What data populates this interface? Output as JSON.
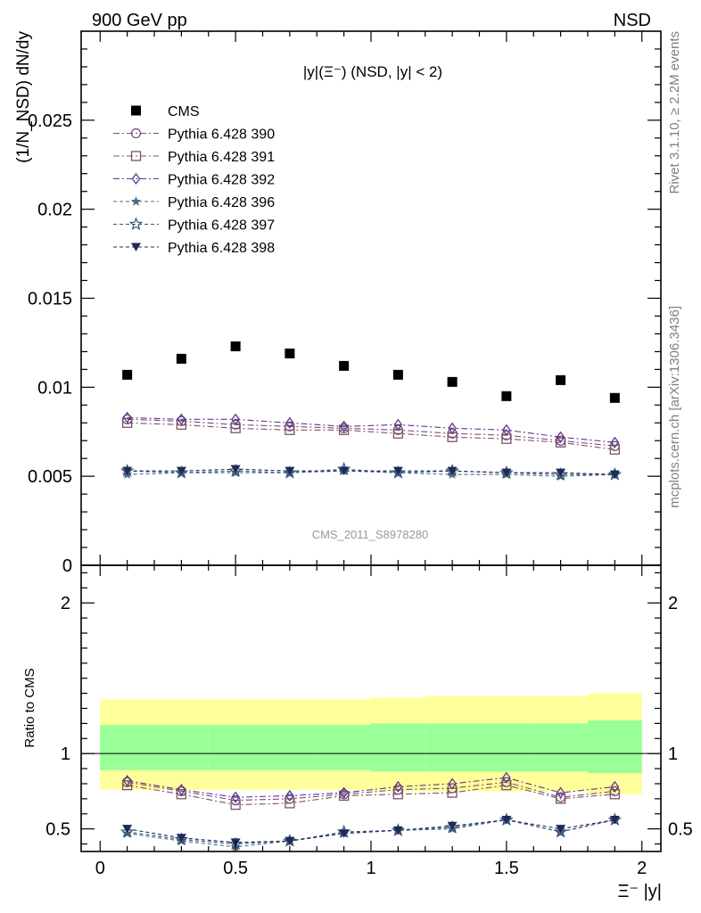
{
  "header": {
    "left": "900 GeV pp",
    "right": "NSD"
  },
  "side_labels": {
    "rivet": "Rivet 3.1.10, ≥ 2.2M events",
    "mcplots": "mcplots.cern.ch [arXiv:1306.3436]"
  },
  "watermark": "CMS_2011_S8978280",
  "chart_data": [
    {
      "type": "scatter",
      "title": "|y|(Ξ⁻) (NSD, |y| < 2)",
      "ylabel": "(1/N_NSD) dN/dy",
      "xlim": [
        -0.07,
        2.07
      ],
      "ylim": [
        0,
        0.03
      ],
      "y_ticks": [
        "0",
        "0.005",
        "0.01",
        "0.015",
        "0.02",
        "0.025"
      ],
      "legend_position": "top-left",
      "x": [
        0.1,
        0.3,
        0.5,
        0.7,
        0.9,
        1.1,
        1.3,
        1.5,
        1.7,
        1.9
      ],
      "series": [
        {
          "name": "CMS",
          "color": "#000000",
          "marker": "filled-square",
          "line": "none",
          "values": [
            0.0107,
            0.0116,
            0.0123,
            0.0119,
            0.0112,
            0.0107,
            0.0103,
            0.0095,
            0.0104,
            0.0094
          ]
        },
        {
          "name": "Pythia 6.428 390",
          "color": "#7a4a7a",
          "marker": "open-circle",
          "line": "dashdot",
          "values": [
            0.0082,
            0.0081,
            0.0079,
            0.0078,
            0.0077,
            0.0076,
            0.0074,
            0.0073,
            0.007,
            0.0067
          ]
        },
        {
          "name": "Pythia 6.428 391",
          "color": "#7a5466",
          "marker": "open-square",
          "line": "dashdot",
          "values": [
            0.008,
            0.0079,
            0.0077,
            0.0076,
            0.0076,
            0.0074,
            0.0072,
            0.0071,
            0.0069,
            0.0065
          ]
        },
        {
          "name": "Pythia 6.428 392",
          "color": "#5a3a8a",
          "marker": "open-diamond",
          "line": "dashdot",
          "values": [
            0.0083,
            0.0082,
            0.0082,
            0.008,
            0.0078,
            0.0079,
            0.0077,
            0.0076,
            0.0072,
            0.0069
          ]
        },
        {
          "name": "Pythia 6.428 396",
          "color": "#4a6e82",
          "marker": "filled-star",
          "line": "dashed",
          "values": [
            0.0051,
            0.0052,
            0.0052,
            0.0052,
            0.0053,
            0.0052,
            0.0051,
            0.0051,
            0.005,
            0.0051
          ]
        },
        {
          "name": "Pythia 6.428 397",
          "color": "#3a5478",
          "marker": "open-star",
          "line": "dashed",
          "values": [
            0.0053,
            0.0052,
            0.0053,
            0.0052,
            0.0054,
            0.0052,
            0.0053,
            0.0052,
            0.0051,
            0.0051
          ]
        },
        {
          "name": "Pythia 6.428 398",
          "color": "#1e2a5a",
          "marker": "filled-triangle-down",
          "line": "dashed",
          "values": [
            0.0053,
            0.0053,
            0.0054,
            0.0053,
            0.0053,
            0.0053,
            0.0053,
            0.0052,
            0.0052,
            0.0051
          ]
        }
      ]
    },
    {
      "type": "scatter",
      "ylabel": "Ratio to CMS",
      "xlabel": "Ξ⁻ |y|",
      "xlim": [
        -0.07,
        2.07
      ],
      "ylim": [
        0.35,
        2.25
      ],
      "x_ticks": [
        "0",
        "0.5",
        "1",
        "1.5",
        "2"
      ],
      "y_ticks": [
        "0.5",
        "1",
        "2"
      ],
      "reference_line": 1,
      "bands": {
        "x_edges": [
          0,
          0.2,
          0.4,
          0.6,
          0.8,
          1.0,
          1.2,
          1.4,
          1.6,
          1.8,
          2.0
        ],
        "stat_color": "#99ff99",
        "total_color": "#ffff99",
        "stat_low": [
          0.89,
          0.89,
          0.89,
          0.89,
          0.89,
          0.88,
          0.88,
          0.88,
          0.88,
          0.87
        ],
        "stat_high": [
          1.19,
          1.19,
          1.19,
          1.19,
          1.19,
          1.2,
          1.2,
          1.2,
          1.2,
          1.22
        ],
        "total_low": [
          0.76,
          0.76,
          0.76,
          0.76,
          0.76,
          0.75,
          0.75,
          0.75,
          0.75,
          0.73
        ],
        "total_high": [
          1.36,
          1.36,
          1.36,
          1.36,
          1.36,
          1.37,
          1.38,
          1.38,
          1.38,
          1.4
        ]
      },
      "x": [
        0.1,
        0.3,
        0.5,
        0.7,
        0.9,
        1.1,
        1.3,
        1.5,
        1.7,
        1.9
      ],
      "series": [
        {
          "name": "Pythia 6.428 390",
          "color": "#7a4a7a",
          "marker": "open-circle",
          "line": "dashdot",
          "values": [
            0.81,
            0.75,
            0.69,
            0.7,
            0.73,
            0.76,
            0.77,
            0.81,
            0.71,
            0.75
          ]
        },
        {
          "name": "Pythia 6.428 391",
          "color": "#7a5466",
          "marker": "open-square",
          "line": "dashdot",
          "values": [
            0.79,
            0.73,
            0.66,
            0.67,
            0.72,
            0.73,
            0.74,
            0.79,
            0.7,
            0.73
          ]
        },
        {
          "name": "Pythia 6.428 392",
          "color": "#5a3a8a",
          "marker": "open-diamond",
          "line": "dashdot",
          "values": [
            0.82,
            0.76,
            0.71,
            0.72,
            0.74,
            0.78,
            0.8,
            0.84,
            0.74,
            0.78
          ]
        },
        {
          "name": "Pythia 6.428 396",
          "color": "#4a6e82",
          "marker": "filled-star",
          "line": "dashed",
          "values": [
            0.47,
            0.42,
            0.38,
            0.42,
            0.47,
            0.49,
            0.5,
            0.56,
            0.48,
            0.56
          ]
        },
        {
          "name": "Pythia 6.428 397",
          "color": "#3a5478",
          "marker": "open-star",
          "line": "dashed",
          "values": [
            0.48,
            0.43,
            0.4,
            0.42,
            0.48,
            0.49,
            0.51,
            0.56,
            0.48,
            0.56
          ]
        },
        {
          "name": "Pythia 6.428 398",
          "color": "#1e2a5a",
          "marker": "filled-triangle-down",
          "line": "dashed",
          "values": [
            0.5,
            0.44,
            0.41,
            0.42,
            0.47,
            0.49,
            0.52,
            0.56,
            0.5,
            0.56
          ]
        }
      ]
    }
  ]
}
